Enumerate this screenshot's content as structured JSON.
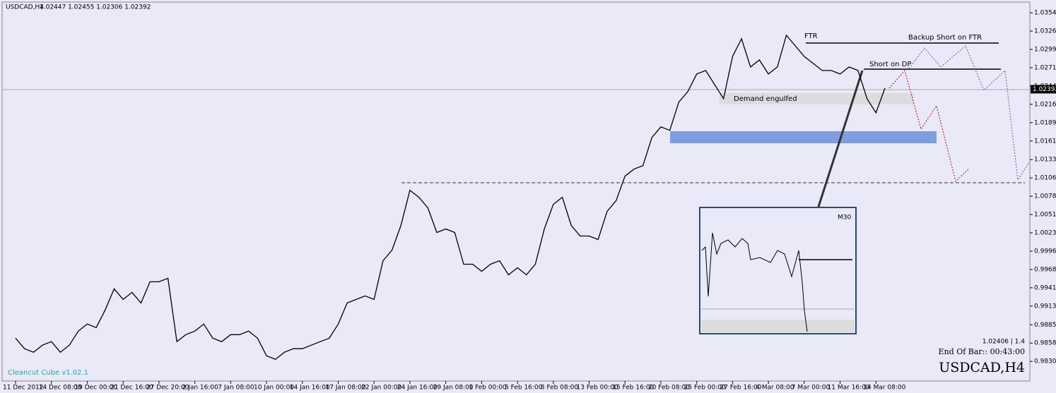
{
  "chart_data": {
    "type": "line",
    "symbol": "USDCAD,H4",
    "ohlc": "1.02447 1.02455 1.02306 1.02392",
    "current_price": "1.02392",
    "annotations": [
      "FTR",
      "Backup Short on FTR",
      "Short on DP",
      "Demand engulfed"
    ],
    "inset_label": "M30",
    "indicator_name": "Cleancut Cube v1.02.1",
    "info_line": "1.02406 | 1.4",
    "end_of_bar": "End Of Bar:: 00:43:00",
    "watermark": "USDCAD,H4",
    "color": "#000000",
    "grid": false,
    "ylim": [
      0.9801,
      1.037
    ],
    "yticks": [
      {
        "value": 1.0354,
        "label": "1.03540"
      },
      {
        "value": 1.03265,
        "label": "1.03265"
      },
      {
        "value": 1.0299,
        "label": "1.02990"
      },
      {
        "value": 1.02715,
        "label": "1.02715"
      },
      {
        "value": 1.0244,
        "label": "1.02440"
      },
      {
        "value": 1.02165,
        "label": "1.02165"
      },
      {
        "value": 1.0189,
        "label": "1.01890"
      },
      {
        "value": 1.01615,
        "label": "1.01615"
      },
      {
        "value": 1.01335,
        "label": "1.01335"
      },
      {
        "value": 1.0106,
        "label": "1.01060"
      },
      {
        "value": 1.00785,
        "label": "1.00785"
      },
      {
        "value": 1.0051,
        "label": "1.00510"
      },
      {
        "value": 1.00235,
        "label": "1.00235"
      },
      {
        "value": 0.9996,
        "label": "0.99960"
      },
      {
        "value": 0.99685,
        "label": "0.99685"
      },
      {
        "value": 0.9941,
        "label": "0.99410"
      },
      {
        "value": 0.99135,
        "label": "0.99135"
      },
      {
        "value": 0.98855,
        "label": "0.98855"
      },
      {
        "value": 0.9858,
        "label": "0.98580"
      },
      {
        "value": 0.98305,
        "label": "0.98305"
      }
    ],
    "categories": [
      "11 Dec 2012",
      null,
      null,
      null,
      "14 Dec 08:00",
      null,
      null,
      null,
      "19 Dec 00:00",
      null,
      null,
      null,
      "21 Dec 16:00",
      null,
      null,
      null,
      "27 Dec 20:00",
      null,
      null,
      null,
      "2 Jan 16:00",
      null,
      null,
      null,
      "7 Jan 08:00",
      null,
      null,
      null,
      "10 Jan 00:00",
      null,
      null,
      null,
      "14 Jan 16:00",
      null,
      null,
      null,
      "17 Jan 08:00",
      null,
      null,
      null,
      "22 Jan 00:00",
      null,
      null,
      null,
      "24 Jan 16:00",
      null,
      null,
      null,
      "29 Jan 08:00",
      null,
      null,
      null,
      "1 Feb 00:00",
      null,
      null,
      null,
      "5 Feb 16:00",
      null,
      null,
      null,
      "8 Feb 08:00",
      null,
      null,
      null,
      "13 Feb 00:00",
      null,
      null,
      null,
      "15 Feb 16:00",
      null,
      null,
      null,
      "20 Feb 08:00",
      null,
      null,
      null,
      "25 Feb 00:00",
      null,
      null,
      null,
      "27 Feb 16:00",
      null,
      null,
      null,
      "4 Mar 08:00",
      null,
      null,
      null,
      "7 Mar 00:00",
      null,
      null,
      null,
      "11 Mar 16:00",
      null,
      null,
      null,
      "14 Mar 08:00",
      null
    ],
    "values": [
      0.98653,
      0.98495,
      0.98442,
      0.98548,
      0.98601,
      0.98442,
      0.98548,
      0.98759,
      0.98865,
      0.98812,
      0.99077,
      0.99394,
      0.99235,
      0.99341,
      0.99182,
      0.995,
      0.995,
      0.99553,
      0.98601,
      0.98706,
      0.98759,
      0.98865,
      0.98653,
      0.98601,
      0.98706,
      0.98706,
      0.98759,
      0.98653,
      0.98389,
      0.98336,
      0.98442,
      0.98495,
      0.98495,
      0.98548,
      0.98601,
      0.98653,
      0.98865,
      0.99182,
      0.99235,
      0.99288,
      0.99235,
      0.99817,
      0.99976,
      1.00346,
      1.00875,
      1.00769,
      1.0061,
      1.0024,
      1.00293,
      1.0024,
      0.99764,
      0.99764,
      0.99658,
      0.99764,
      0.99817,
      0.99605,
      0.99711,
      0.99605,
      0.99764,
      1.00293,
      1.00663,
      1.00769,
      1.00346,
      1.00187,
      1.00187,
      1.00134,
      1.00557,
      1.00716,
      1.01086,
      1.01192,
      1.01245,
      1.01668,
      1.01827,
      1.01774,
      1.02197,
      1.02355,
      1.0262,
      1.02673,
      1.02461,
      1.0225,
      1.02884,
      1.03149,
      1.02726,
      1.02831,
      1.0262,
      1.02726,
      1.03202,
      1.03043,
      1.02884,
      1.02779,
      1.02673,
      1.02673,
      1.0262,
      1.02726,
      1.02673,
      1.0225,
      1.02038,
      1.02408
    ]
  }
}
